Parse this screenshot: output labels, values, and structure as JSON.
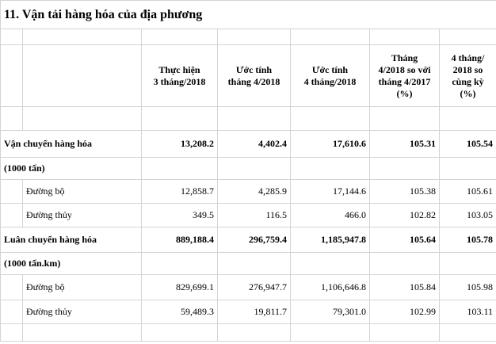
{
  "header": {
    "title": "11. Vận tải hàng hóa của địa phương"
  },
  "table": {
    "columns": [
      "Thực hiện\n3 tháng/2018",
      "Ước tính\ntháng 4/2018",
      "Ước tính\n4 tháng/2018",
      "Tháng\n4/2018 so với\ntháng 4/2017\n(%)",
      "4 tháng/\n2018 so\ncùng kỳ\n(%)"
    ],
    "rows": [
      {
        "label": "Vận chuyển hàng hóa",
        "bold": true,
        "indent": false,
        "values": [
          "13,208.2",
          "4,402.4",
          "17,610.6",
          "105.31",
          "105.54"
        ]
      },
      {
        "label": "(1000 tấn)",
        "bold": true,
        "indent": false,
        "values": []
      },
      {
        "label": "Đường bộ",
        "bold": false,
        "indent": true,
        "values": [
          "12,858.7",
          "4,285.9",
          "17,144.6",
          "105.38",
          "105.61"
        ]
      },
      {
        "label": "Đường thủy",
        "bold": false,
        "indent": true,
        "values": [
          "349.5",
          "116.5",
          "466.0",
          "102.82",
          "103.05"
        ]
      },
      {
        "label": "Luân chuyển hàng hóa",
        "bold": true,
        "indent": false,
        "values": [
          "889,188.4",
          "296,759.4",
          "1,185,947.8",
          "105.64",
          "105.78"
        ]
      },
      {
        "label": "(1000 tấn.km)",
        "bold": true,
        "indent": false,
        "values": []
      },
      {
        "label": "Đường bộ",
        "bold": false,
        "indent": true,
        "values": [
          "829,699.1",
          "276,947.7",
          "1,106,646.8",
          "105.84",
          "105.98"
        ]
      },
      {
        "label": "Đường thủy",
        "bold": false,
        "indent": true,
        "values": [
          "59,489.3",
          "19,811.7",
          "79,301.0",
          "102.99",
          "103.11"
        ]
      }
    ]
  }
}
